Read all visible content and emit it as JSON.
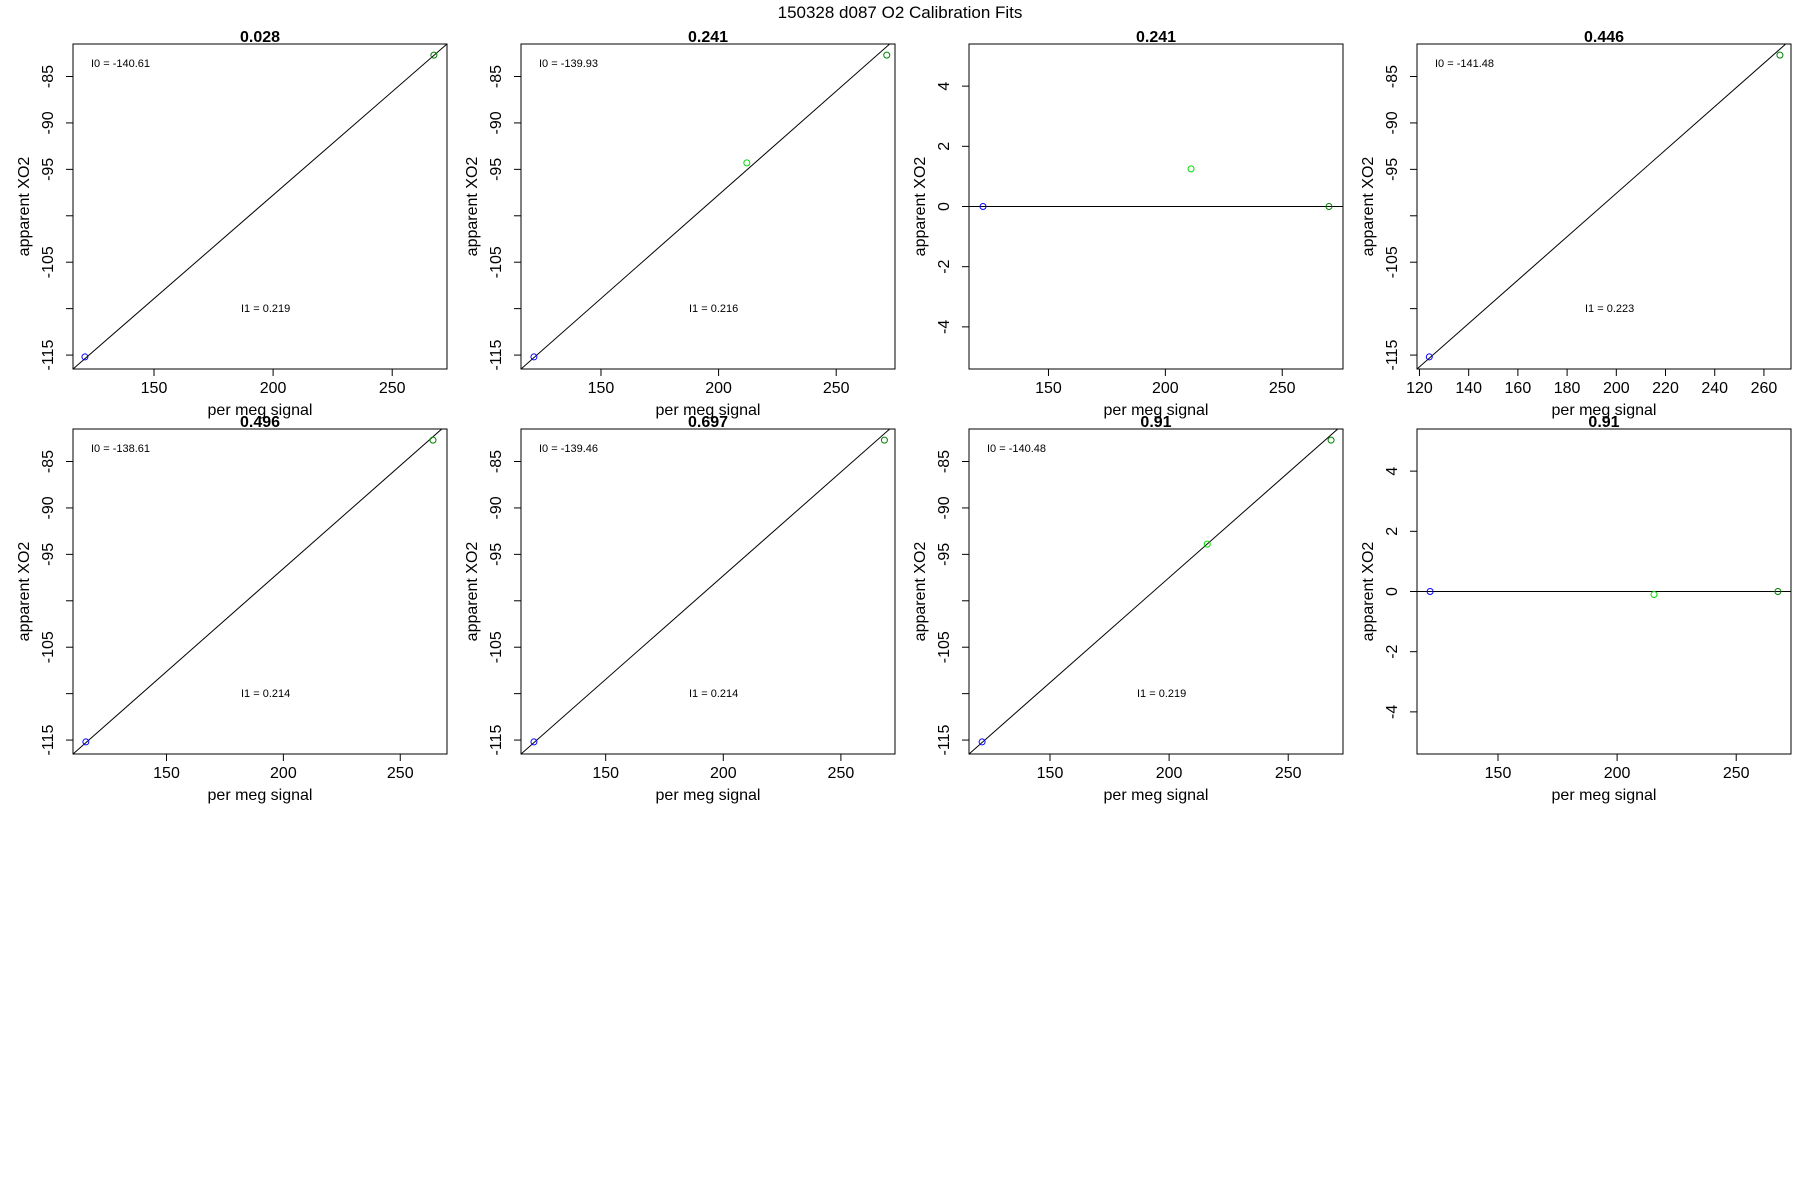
{
  "figure": {
    "title": "150328   d087   O2 Calibration Fits"
  },
  "colors": {
    "low": "#0000ff",
    "mid": "#00dd00",
    "high": "#008000",
    "line": "#000000",
    "frame": "#000000"
  },
  "chart_data": [
    {
      "type": "scatter",
      "title": "0.028",
      "xlabel": "per meg signal",
      "ylabel": "apparent XO2",
      "xlim": [
        116,
        273
      ],
      "ylim": [
        -116.5,
        -81.5
      ],
      "xticks": [
        150,
        200,
        250
      ],
      "yticks": [
        -115,
        -105,
        -95,
        -90,
        -85
      ],
      "yminor": [
        -110,
        -100
      ],
      "points": [
        {
          "x": 121,
          "y": -115.2,
          "c": "low"
        },
        {
          "x": 267.5,
          "y": -82.7,
          "c": "high"
        }
      ],
      "fit_line": [
        [
          116,
          -116.5
        ],
        [
          273,
          -81.5
        ]
      ],
      "label_i0": "I0 =  -140.61",
      "label_i1": "I1 =  0.219"
    },
    {
      "type": "scatter",
      "title": "0.241",
      "xlabel": "per meg signal",
      "ylabel": "apparent XO2",
      "xlim": [
        116,
        275
      ],
      "ylim": [
        -116.5,
        -81.5
      ],
      "xticks": [
        150,
        200,
        250
      ],
      "yticks": [
        -115,
        -105,
        -95,
        -90,
        -85
      ],
      "yminor": [
        -110,
        -100
      ],
      "points": [
        {
          "x": 121.5,
          "y": -115.2,
          "c": "low"
        },
        {
          "x": 212,
          "y": -94.3,
          "c": "mid"
        },
        {
          "x": 271.5,
          "y": -82.7,
          "c": "high"
        }
      ],
      "fit_line": [
        [
          116,
          -116.5
        ],
        [
          275,
          -81
        ]
      ],
      "label_i0": "I0 =  -139.93",
      "label_i1": "I1 =  0.216"
    },
    {
      "type": "scatter",
      "title": "0.241",
      "xlabel": "per meg signal",
      "ylabel": "apparent XO2",
      "xlim": [
        116,
        276
      ],
      "ylim": [
        -5.4,
        5.4
      ],
      "xticks": [
        150,
        200,
        250
      ],
      "yticks": [
        -4,
        -2,
        0,
        2,
        4
      ],
      "yminor": [],
      "points": [
        {
          "x": 122,
          "y": 0,
          "c": "low"
        },
        {
          "x": 211,
          "y": 1.25,
          "c": "mid"
        },
        {
          "x": 270,
          "y": 0,
          "c": "high"
        }
      ],
      "fit_line": [
        [
          116,
          0
        ],
        [
          276,
          0
        ]
      ],
      "label_i0": "",
      "label_i1": ""
    },
    {
      "type": "scatter",
      "title": "0.446",
      "xlabel": "per meg signal",
      "ylabel": "apparent XO2",
      "xlim": [
        119,
        271
      ],
      "ylim": [
        -116.5,
        -81.5
      ],
      "xticks": [
        120,
        140,
        160,
        180,
        200,
        220,
        240,
        260
      ],
      "yticks": [
        -115,
        -105,
        -95,
        -90,
        -85
      ],
      "yminor": [
        -110,
        -100
      ],
      "points": [
        {
          "x": 124,
          "y": -115.2,
          "c": "low"
        },
        {
          "x": 266.5,
          "y": -82.7,
          "c": "high"
        }
      ],
      "fit_line": [
        [
          119,
          -116.5
        ],
        [
          271,
          -81
        ]
      ],
      "label_i0": "I0 =  -141.48",
      "label_i1": "I1 =  0.223"
    },
    {
      "type": "scatter",
      "title": "0.496",
      "xlabel": "per meg signal",
      "ylabel": "apparent XO2",
      "xlim": [
        110,
        270
      ],
      "ylim": [
        -116.5,
        -81.5
      ],
      "xticks": [
        150,
        200,
        250
      ],
      "yticks": [
        -115,
        -105,
        -95,
        -90,
        -85
      ],
      "yminor": [
        -110,
        -100
      ],
      "points": [
        {
          "x": 115.5,
          "y": -115.2,
          "c": "low"
        },
        {
          "x": 264,
          "y": -82.7,
          "c": "high"
        }
      ],
      "fit_line": [
        [
          110,
          -116.5
        ],
        [
          270,
          -81
        ]
      ],
      "label_i0": "I0 =  -138.61",
      "label_i1": "I1 =  0.214"
    },
    {
      "type": "scatter",
      "title": "0.697",
      "xlabel": "per meg signal",
      "ylabel": "apparent XO2",
      "xlim": [
        114,
        273
      ],
      "ylim": [
        -116.5,
        -81.5
      ],
      "xticks": [
        150,
        200,
        250
      ],
      "yticks": [
        -115,
        -105,
        -95,
        -90,
        -85
      ],
      "yminor": [
        -110,
        -100
      ],
      "points": [
        {
          "x": 119.5,
          "y": -115.2,
          "c": "low"
        },
        {
          "x": 268.5,
          "y": -82.7,
          "c": "high"
        }
      ],
      "fit_line": [
        [
          114,
          -116.5
        ],
        [
          273,
          -81
        ]
      ],
      "label_i0": "I0 =  -139.46",
      "label_i1": "I1 =  0.214"
    },
    {
      "type": "scatter",
      "title": "0.91",
      "xlabel": "per meg signal",
      "ylabel": "apparent XO2",
      "xlim": [
        116,
        273
      ],
      "ylim": [
        -116.5,
        -81.5
      ],
      "xticks": [
        150,
        200,
        250
      ],
      "yticks": [
        -115,
        -105,
        -95,
        -90,
        -85
      ],
      "yminor": [
        -110,
        -100
      ],
      "points": [
        {
          "x": 121.5,
          "y": -115.2,
          "c": "low"
        },
        {
          "x": 216,
          "y": -93.9,
          "c": "mid"
        },
        {
          "x": 268,
          "y": -82.7,
          "c": "high"
        }
      ],
      "fit_line": [
        [
          116,
          -116.5
        ],
        [
          273,
          -81
        ]
      ],
      "label_i0": "I0 =  -140.48",
      "label_i1": "I1 =  0.219"
    },
    {
      "type": "scatter",
      "title": "0.91",
      "xlabel": "per meg signal",
      "ylabel": "apparent XO2",
      "xlim": [
        116,
        273
      ],
      "ylim": [
        -5.4,
        5.4
      ],
      "xticks": [
        150,
        200,
        250
      ],
      "yticks": [
        -4,
        -2,
        0,
        2,
        4
      ],
      "yminor": [],
      "points": [
        {
          "x": 121.5,
          "y": 0,
          "c": "low"
        },
        {
          "x": 215.5,
          "y": -0.1,
          "c": "mid"
        },
        {
          "x": 267.5,
          "y": 0,
          "c": "high"
        }
      ],
      "fit_line": [
        [
          116,
          0
        ],
        [
          273,
          0
        ]
      ],
      "label_i0": "",
      "label_i1": ""
    }
  ]
}
